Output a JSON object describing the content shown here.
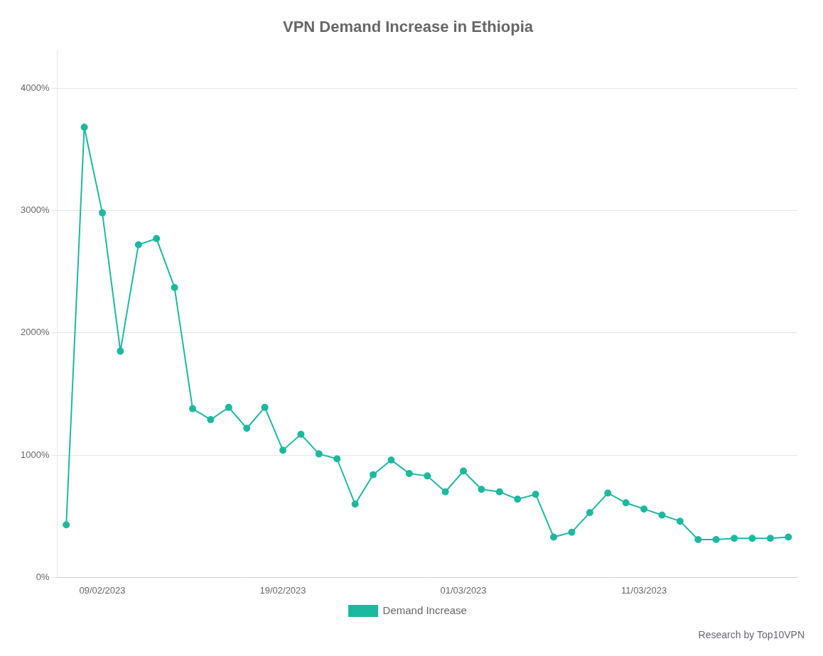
{
  "chart_data": {
    "type": "line",
    "title": "VPN Demand Increase in Ethiopia",
    "categories": [
      null,
      null,
      "09/02/2023",
      null,
      null,
      null,
      null,
      null,
      null,
      null,
      null,
      null,
      "19/02/2023",
      null,
      null,
      null,
      null,
      null,
      null,
      null,
      null,
      null,
      "01/03/2023",
      null,
      null,
      null,
      null,
      null,
      null,
      null,
      null,
      null,
      "11/03/2023",
      null,
      null,
      null,
      null,
      null,
      null,
      null,
      null
    ],
    "series": [
      {
        "name": "Demand Increase",
        "color": "#1DB8A0",
        "marker": "circle",
        "values": [
          430,
          3680,
          2980,
          1850,
          2720,
          2770,
          2370,
          1380,
          1290,
          1390,
          1220,
          1390,
          1040,
          1170,
          1010,
          970,
          600,
          840,
          960,
          850,
          830,
          700,
          870,
          720,
          700,
          640,
          680,
          330,
          370,
          530,
          690,
          610,
          560,
          510,
          460,
          310,
          310,
          320,
          320,
          320,
          330
        ]
      }
    ],
    "ylim": [
      0,
      4300
    ],
    "yticks": [
      {
        "value": 0,
        "label": "0%"
      },
      {
        "value": 1000,
        "label": "1000%"
      },
      {
        "value": 2000,
        "label": "2000%"
      },
      {
        "value": 3000,
        "label": "3000%"
      },
      {
        "value": 4000,
        "label": "4000%"
      }
    ],
    "grid": "y",
    "legend": "bottom",
    "annotations": [
      "Research by Top10VPN"
    ]
  }
}
